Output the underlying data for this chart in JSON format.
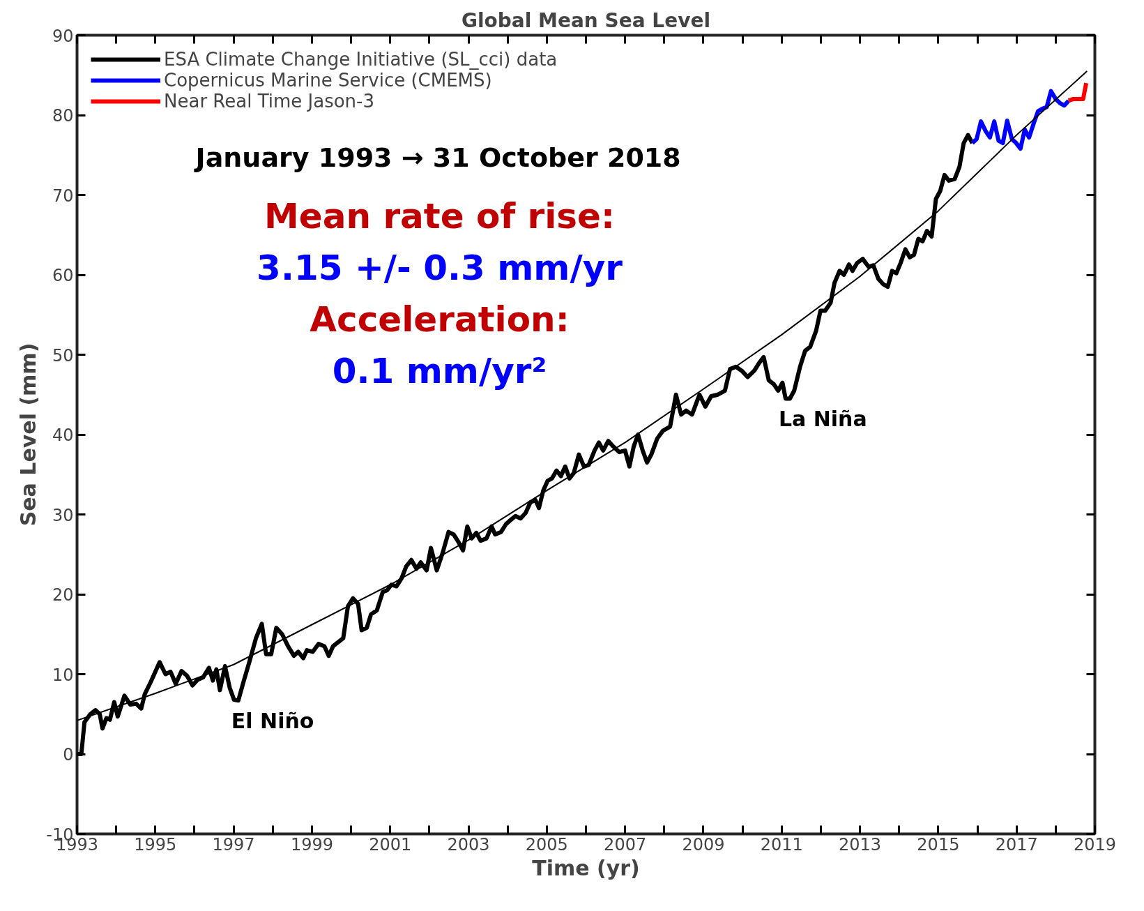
{
  "chart_data": {
    "type": "line",
    "title": "Global Mean Sea Level",
    "xlabel": "Time (yr)",
    "ylabel": "Sea Level (mm)",
    "xlim": [
      1993,
      2019
    ],
    "ylim": [
      -10,
      90
    ],
    "xticks": [
      1993,
      {
        "value": 1994,
        "label": null
      },
      1995,
      {
        "value": 1996,
        "label": null
      },
      1997,
      {
        "value": 1998,
        "label": null
      },
      1999,
      {
        "value": 2000,
        "label": null
      },
      2001,
      {
        "value": 2002,
        "label": null
      },
      2003,
      {
        "value": 2004,
        "label": null
      },
      2005,
      {
        "value": 2006,
        "label": null
      },
      2007,
      {
        "value": 2008,
        "label": null
      },
      2009,
      {
        "value": 2010,
        "label": null
      },
      2011,
      {
        "value": 2012,
        "label": null
      },
      2013,
      {
        "value": 2014,
        "label": null
      },
      2015,
      {
        "value": 2016,
        "label": null
      },
      2017,
      {
        "value": 2018,
        "label": null
      },
      2019
    ],
    "yticks": [
      -10,
      0,
      10,
      20,
      30,
      40,
      50,
      60,
      70,
      80,
      90
    ],
    "grid": false,
    "legend": "top left",
    "marker": "none",
    "line_style": "solid",
    "series": [
      {
        "name": "ESA Climate Change Initiative (SL_cci) data",
        "color": "#000000",
        "x": [
          1993.0,
          1993.11,
          1993.19,
          1993.34,
          1993.47,
          1993.58,
          1993.65,
          1993.75,
          1993.84,
          1993.95,
          1994.04,
          1994.21,
          1994.36,
          1994.51,
          1994.64,
          1994.73,
          1994.88,
          1995.11,
          1995.26,
          1995.39,
          1995.52,
          1995.67,
          1995.81,
          1995.95,
          1996.08,
          1996.22,
          1996.37,
          1996.47,
          1996.56,
          1996.65,
          1996.78,
          1996.9,
          1997.01,
          1997.12,
          1997.25,
          1997.4,
          1997.57,
          1997.72,
          1997.83,
          1997.96,
          1998.09,
          1998.24,
          1998.39,
          1998.54,
          1998.65,
          1998.78,
          1998.87,
          1999.02,
          1999.17,
          1999.32,
          1999.43,
          1999.54,
          1999.67,
          1999.8,
          1999.92,
          2000.05,
          2000.18,
          2000.27,
          2000.4,
          2000.51,
          2000.66,
          2000.81,
          2000.92,
          2001.03,
          2001.16,
          2001.29,
          2001.41,
          2001.54,
          2001.67,
          2001.78,
          2001.93,
          2002.04,
          2002.19,
          2002.34,
          2002.49,
          2002.62,
          2002.75,
          2002.86,
          2002.97,
          2003.08,
          2003.2,
          2003.31,
          2003.46,
          2003.59,
          2003.68,
          2003.83,
          2003.96,
          2004.05,
          2004.2,
          2004.33,
          2004.46,
          2004.58,
          2004.71,
          2004.8,
          2004.91,
          2005.02,
          2005.13,
          2005.25,
          2005.36,
          2005.47,
          2005.58,
          2005.69,
          2005.82,
          2005.95,
          2006.07,
          2006.22,
          2006.33,
          2006.44,
          2006.57,
          2006.7,
          2006.85,
          2007.0,
          2007.11,
          2007.22,
          2007.33,
          2007.45,
          2007.56,
          2007.67,
          2007.82,
          2007.97,
          2008.15,
          2008.3,
          2008.43,
          2008.56,
          2008.71,
          2008.9,
          2009.05,
          2009.2,
          2009.37,
          2009.55,
          2009.68,
          2009.83,
          2009.98,
          2010.13,
          2010.3,
          2010.43,
          2010.54,
          2010.67,
          2010.8,
          2010.91,
          2011.02,
          2011.1,
          2011.21,
          2011.32,
          2011.47,
          2011.6,
          2011.73,
          2011.88,
          2011.99,
          2012.11,
          2012.25,
          2012.35,
          2012.48,
          2012.59,
          2012.72,
          2012.81,
          2012.93,
          2013.07,
          2013.22,
          2013.34,
          2013.47,
          2013.6,
          2013.71,
          2013.82,
          2013.93,
          2014.04,
          2014.16,
          2014.27,
          2014.38,
          2014.49,
          2014.6,
          2014.71,
          2014.83,
          2014.94,
          2015.05,
          2015.16,
          2015.27,
          2015.42,
          2015.54,
          2015.65,
          2015.76,
          2015.87
        ],
        "values": [
          0,
          0,
          4,
          5,
          5.5,
          5,
          3.2,
          4.5,
          4.3,
          6.5,
          4.7,
          7.3,
          6.2,
          6.3,
          5.7,
          7.5,
          9,
          11.5,
          10,
          10.3,
          8.8,
          10.4,
          9.8,
          8.6,
          9.3,
          9.6,
          10.8,
          9.2,
          10.6,
          8,
          11,
          8.3,
          6.8,
          6.7,
          9,
          11.5,
          14.5,
          16.3,
          12.5,
          12.5,
          15.8,
          15,
          13.5,
          12.3,
          12.8,
          12,
          13,
          12.8,
          13.8,
          13.5,
          12.3,
          13.5,
          14,
          14.5,
          18.5,
          19.5,
          18.8,
          15.5,
          15.8,
          17.5,
          18,
          20.3,
          20.5,
          21.2,
          21,
          22,
          23.5,
          24.3,
          23.2,
          24,
          23,
          25.8,
          23,
          25.2,
          27.8,
          27.5,
          26.5,
          25.5,
          28.5,
          27,
          27.7,
          26.7,
          27,
          28.5,
          27.5,
          27.8,
          28.8,
          29.2,
          29.8,
          29.5,
          30.2,
          31.5,
          31.8,
          30.8,
          33,
          34.2,
          34.5,
          35.5,
          34.8,
          36,
          34.5,
          35.2,
          37.5,
          36,
          36.2,
          38,
          39,
          38,
          39.2,
          38.5,
          37.8,
          38,
          36,
          38.5,
          40,
          38,
          36.5,
          37.5,
          39.5,
          40.5,
          41,
          45,
          42.5,
          43,
          42.5,
          45,
          43.5,
          44.8,
          45,
          45.5,
          48.2,
          48.5,
          48,
          47.2,
          48,
          49,
          49.7,
          46.8,
          46.3,
          45.5,
          46.5,
          44.5,
          44.5,
          45.5,
          48.5,
          50.5,
          51,
          53,
          55.5,
          55.5,
          56.5,
          59,
          60.5,
          60,
          61.3,
          60.5,
          61.5,
          62,
          61,
          61.2,
          59.5,
          58.8,
          58.5,
          60.5,
          60.2,
          61.5,
          63.2,
          62.2,
          62.5,
          64.5,
          64.2,
          65.5,
          64.8,
          69.5,
          70.5,
          72.5,
          71.8,
          72,
          73.5,
          76.5,
          77.5,
          76.5
        ]
      },
      {
        "name": "Copernicus Marine Service (CMEMS)",
        "color": "#0000ff",
        "x": [
          2015.87,
          2015.98,
          2016.09,
          2016.21,
          2016.32,
          2016.43,
          2016.54,
          2016.65,
          2016.76,
          2016.88,
          2016.99,
          2017.1,
          2017.21,
          2017.32,
          2017.44,
          2017.55,
          2017.66,
          2017.77,
          2017.88,
          2018.0,
          2018.11,
          2018.22,
          2018.33
        ],
        "values": [
          76.5,
          77,
          79.2,
          78,
          77.2,
          79.2,
          76.8,
          76.5,
          79.3,
          77,
          76.5,
          75.8,
          78.2,
          77.2,
          79,
          80.5,
          80.8,
          81,
          83,
          82,
          81.5,
          81.2,
          81.8
        ]
      },
      {
        "name": "Near Real Time Jason-3",
        "color": "#ff0000",
        "x": [
          2018.33,
          2018.44,
          2018.59,
          2018.7,
          2018.78
        ],
        "values": [
          81.8,
          82,
          82,
          82,
          84
        ]
      },
      {
        "color": "#000000",
        "x": [
          1993,
          1995,
          1997,
          1999,
          2001,
          2003,
          2005,
          2007,
          2009,
          2011,
          2013,
          2015,
          2017,
          2018.8
        ],
        "values": [
          4.2,
          7.6,
          11.2,
          16.2,
          21.2,
          26.8,
          33,
          39,
          45.7,
          52.5,
          59.8,
          68,
          77.5,
          85.5
        ]
      }
    ],
    "annotations": [
      "January 1993 → 31 October 2018",
      "Mean rate of rise:",
      "3.15 +/- 0.3 mm/yr",
      "Acceleration:",
      "0.1 mm/yr²",
      {
        "text": "El Niño",
        "x": 1997.12,
        "y": 6.7
      },
      {
        "text": "La Niña",
        "x": 2011.1,
        "y": 44.5
      }
    ]
  }
}
